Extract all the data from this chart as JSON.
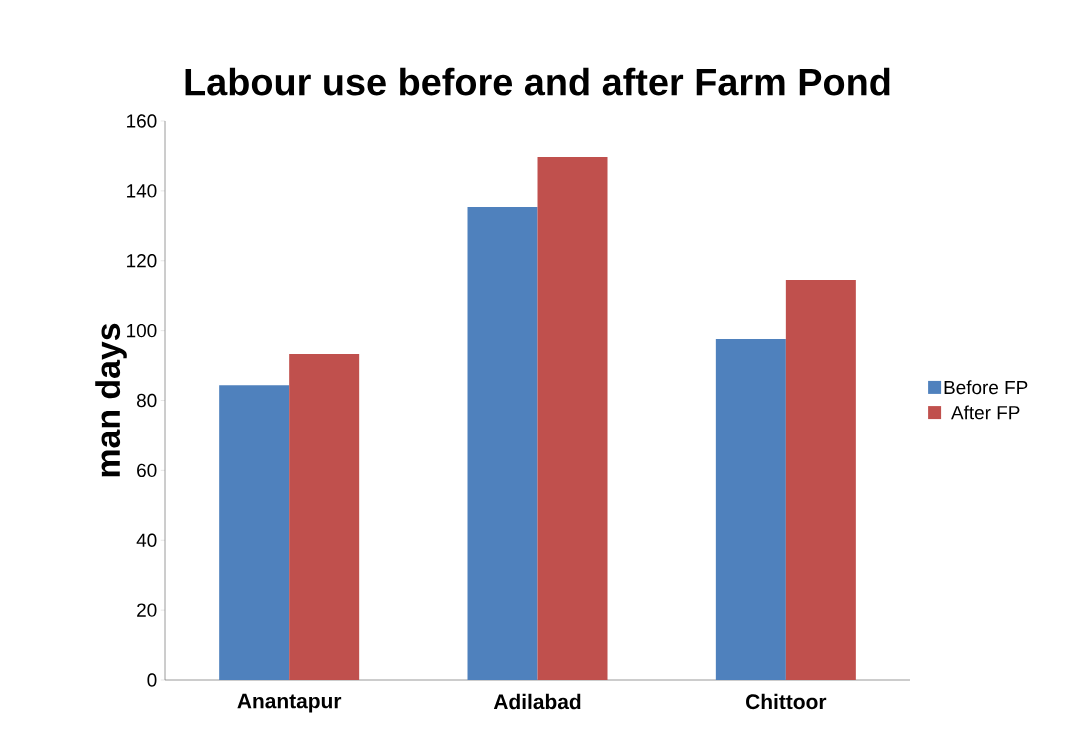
{
  "chart_data": {
    "type": "bar",
    "title": "Labour use before and after Farm Pond",
    "ylabel": "man days",
    "categories": [
      "Anantapur",
      "Adilabad",
      "Chittoor"
    ],
    "series": [
      {
        "name": "Before FP",
        "color": "#4f81bd",
        "values": [
          84.4,
          135.4,
          97.6
        ]
      },
      {
        "name": "After FP",
        "color": "#c0504d",
        "values": [
          93.3,
          149.7,
          114.5
        ]
      }
    ],
    "ylim": [
      0,
      160
    ],
    "yticks": [
      0,
      20,
      40,
      60,
      80,
      100,
      120,
      140,
      160
    ],
    "grid": false,
    "legend": "right"
  }
}
